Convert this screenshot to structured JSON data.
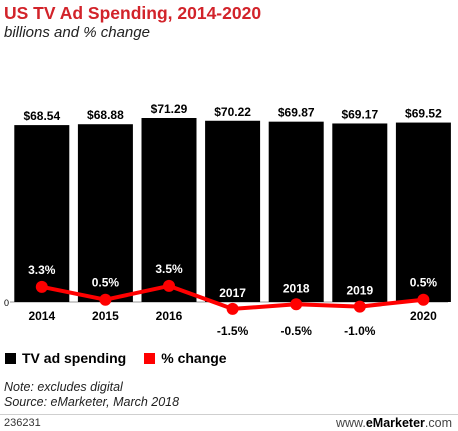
{
  "title": "US TV Ad Spending, 2014-2020",
  "subtitle": "billions and % change",
  "legend": {
    "bar_label": "TV ad spending",
    "line_label": "% change"
  },
  "note": "Note: excludes digital",
  "source": "Source: eMarketer, March 2018",
  "chart_id": "236231",
  "brand": {
    "prefix": "www.",
    "name": "eMarketer",
    "suffix": ".com"
  },
  "colors": {
    "bar": "#000000",
    "line": "#ff0000",
    "title": "#d2232a"
  },
  "chart_data": {
    "type": "bar",
    "categories": [
      "2014",
      "2015",
      "2016",
      "2017",
      "2018",
      "2019",
      "2020"
    ],
    "series": [
      {
        "name": "TV ad spending",
        "type": "bar",
        "values": [
          68.54,
          68.88,
          71.29,
          70.22,
          69.87,
          69.17,
          69.52
        ],
        "labels": [
          "$68.54",
          "$68.88",
          "$71.29",
          "$70.22",
          "$69.87",
          "$69.17",
          "$69.52"
        ]
      },
      {
        "name": "% change",
        "type": "line",
        "values": [
          3.3,
          0.5,
          3.5,
          -1.5,
          -0.5,
          -1.0,
          0.5
        ],
        "labels": [
          "3.3%",
          "0.5%",
          "3.5%",
          "-1.5%",
          "-0.5%",
          "-1.0%",
          "0.5%"
        ]
      }
    ],
    "zero_label": "0",
    "legend_position": "bottom-left",
    "grid": false
  }
}
